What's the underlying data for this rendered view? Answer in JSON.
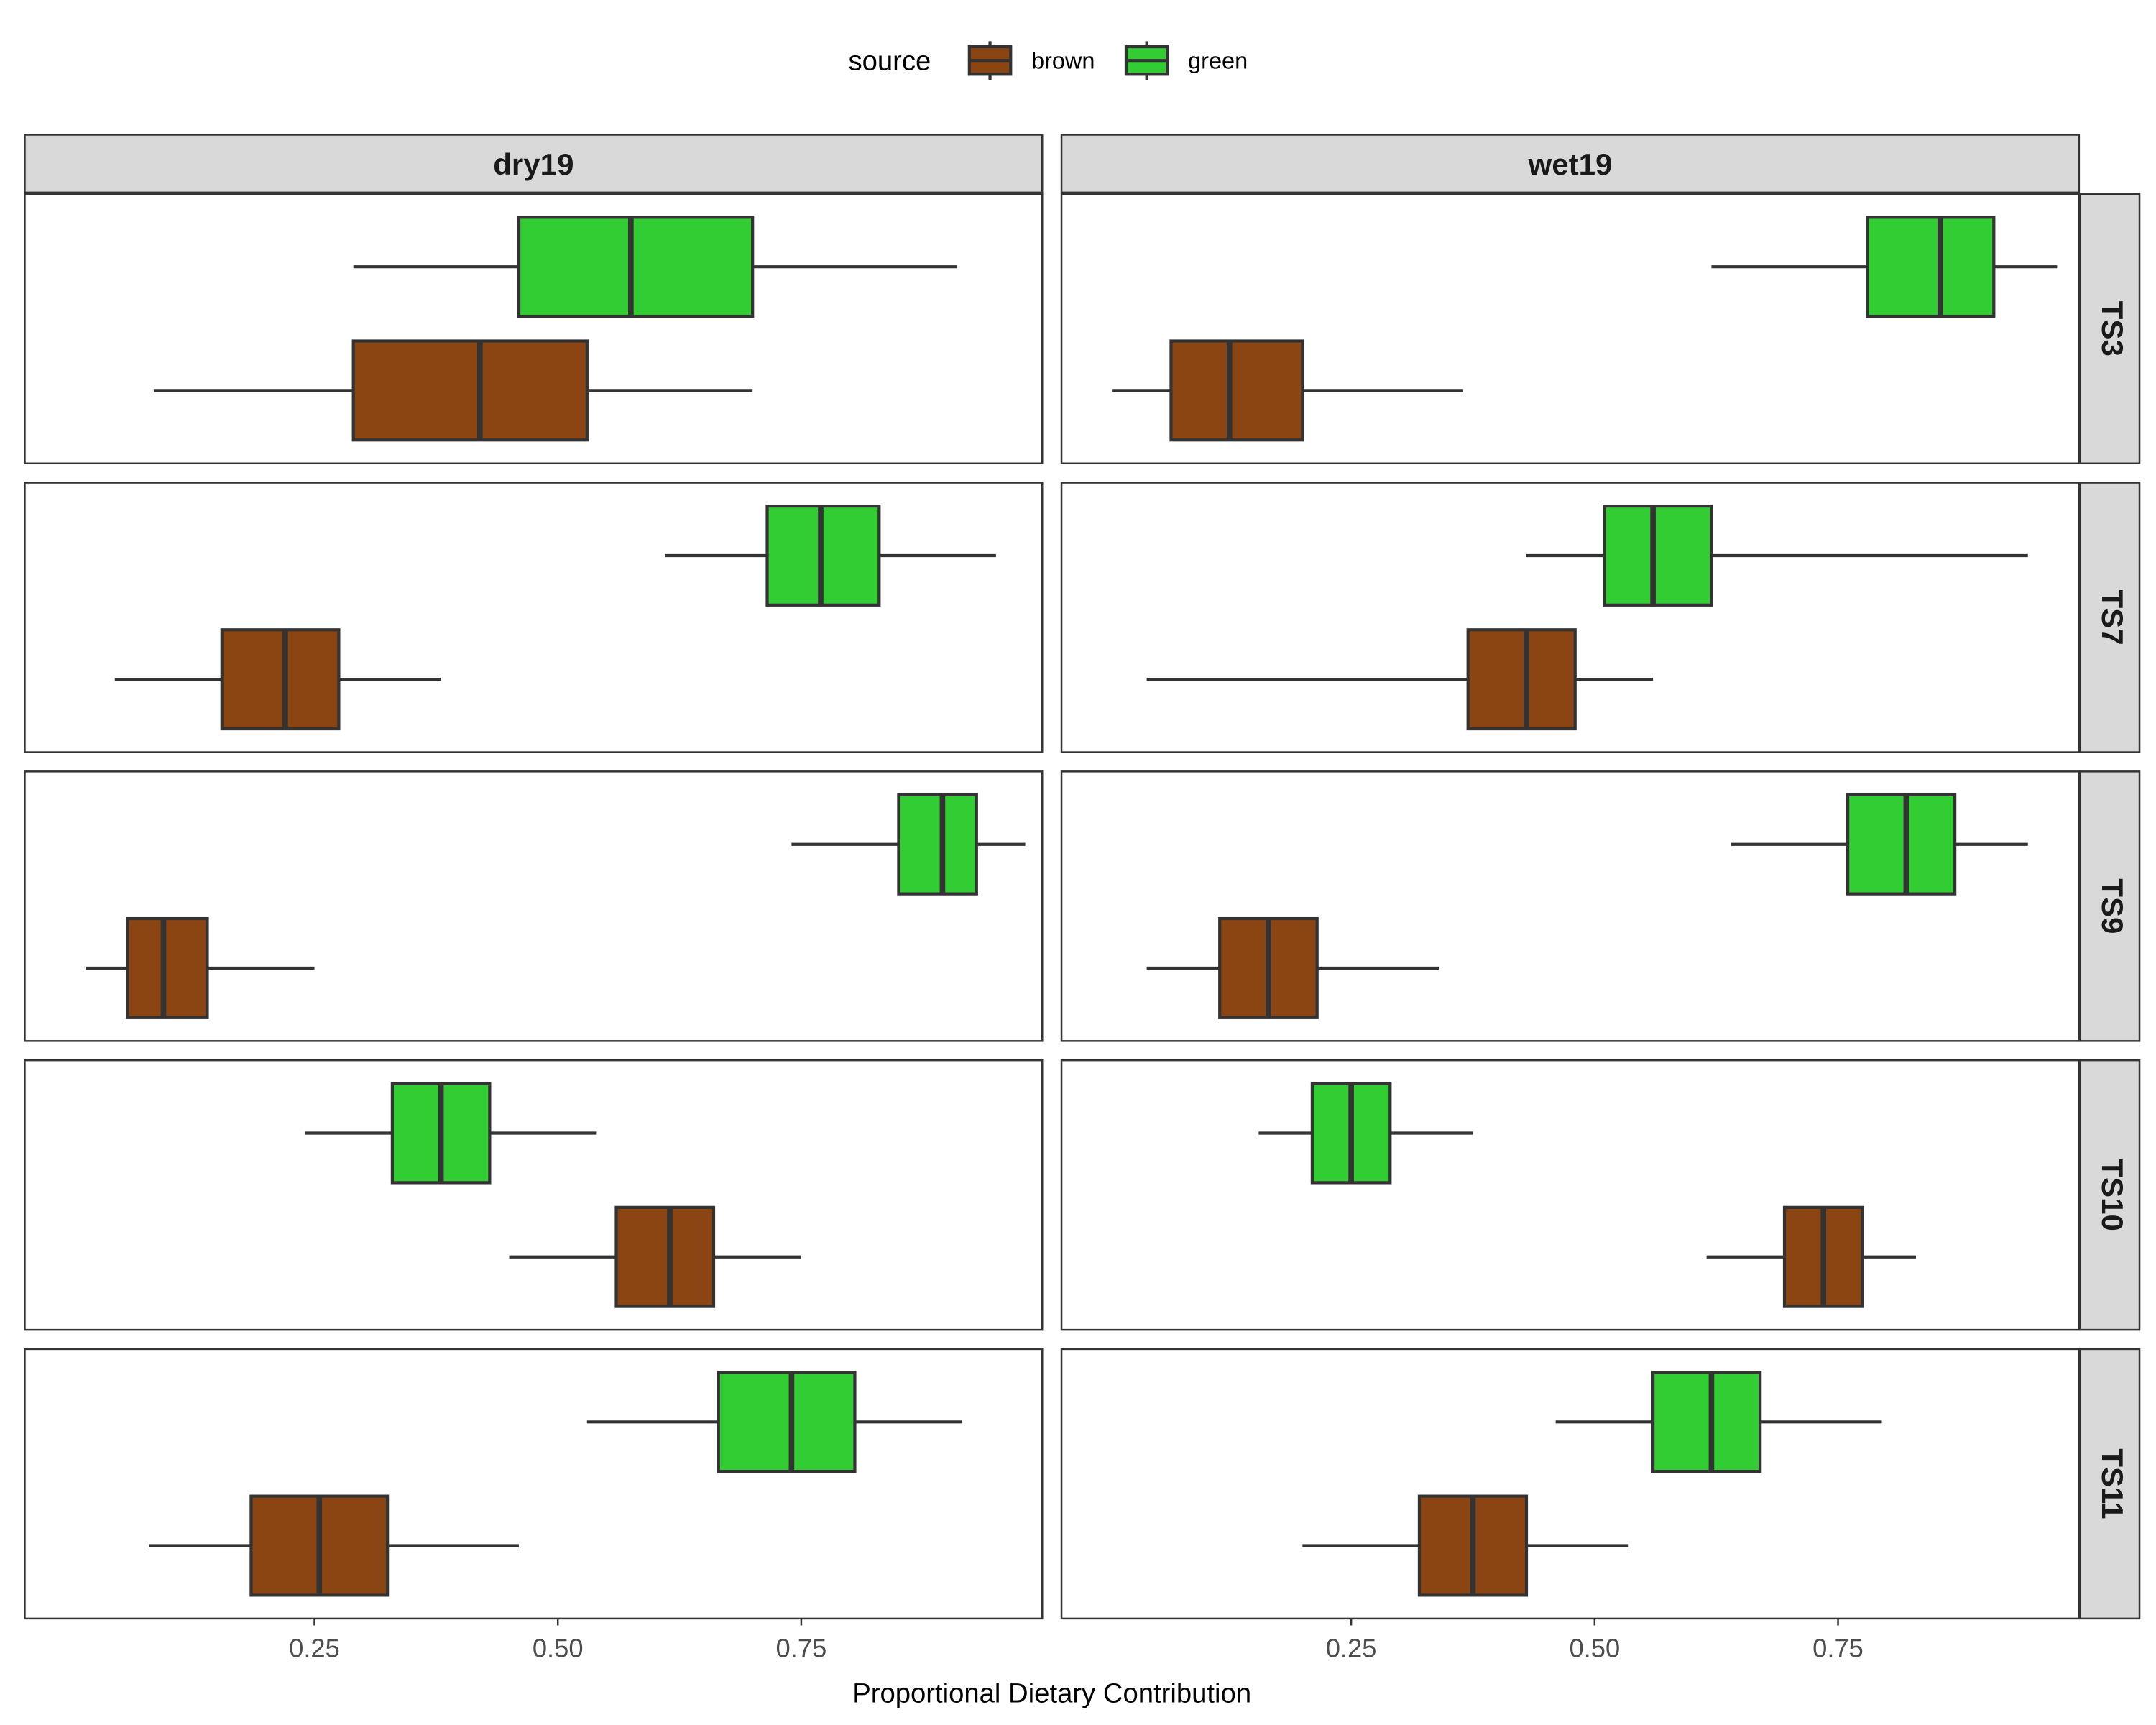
{
  "chart_data": {
    "type": "boxplot",
    "orientation": "horizontal",
    "xlabel": "Proportional Dietary Contribution",
    "ylabel": "",
    "xlim": [
      0.0,
      1.0
    ],
    "xticks": [
      0.25,
      0.5,
      0.75
    ],
    "xtick_labels": [
      "0.25",
      "0.50",
      "0.75"
    ],
    "grid": false,
    "legend": {
      "title": "source",
      "placement": "top",
      "entries": [
        {
          "label": "brown",
          "color": "#8B4513"
        },
        {
          "label": "green",
          "color": "#32CD32"
        }
      ]
    },
    "facet_columns": [
      "dry19",
      "wet19"
    ],
    "facet_rows": [
      "TS3",
      "TS7",
      "TS9",
      "TS10",
      "TS11"
    ],
    "box_stats_order": [
      "whisker_low",
      "q1",
      "median",
      "q3",
      "whisker_high"
    ],
    "panels": [
      {
        "col": "dry19",
        "row": "TS3",
        "green": [
          0.29,
          0.46,
          0.575,
          0.7,
          0.91
        ],
        "brown": [
          0.085,
          0.29,
          0.42,
          0.53,
          0.7
        ]
      },
      {
        "col": "wet19",
        "row": "TS3",
        "green": [
          0.62,
          0.78,
          0.855,
          0.91,
          0.975
        ],
        "brown": [
          0.005,
          0.065,
          0.125,
          0.2,
          0.365
        ]
      },
      {
        "col": "dry19",
        "row": "TS7",
        "green": [
          0.61,
          0.715,
          0.77,
          0.83,
          0.95
        ],
        "brown": [
          0.045,
          0.155,
          0.22,
          0.275,
          0.38
        ]
      },
      {
        "col": "wet19",
        "row": "TS7",
        "green": [
          0.43,
          0.51,
          0.56,
          0.62,
          0.945
        ],
        "brown": [
          0.04,
          0.37,
          0.43,
          0.48,
          0.56
        ]
      },
      {
        "col": "dry19",
        "row": "TS9",
        "green": [
          0.74,
          0.85,
          0.895,
          0.93,
          0.98
        ],
        "brown": [
          0.015,
          0.058,
          0.095,
          0.14,
          0.25
        ]
      },
      {
        "col": "wet19",
        "row": "TS9",
        "green": [
          0.64,
          0.76,
          0.82,
          0.87,
          0.945
        ],
        "brown": [
          0.04,
          0.115,
          0.165,
          0.215,
          0.34
        ]
      },
      {
        "col": "dry19",
        "row": "TS10",
        "green": [
          0.24,
          0.33,
          0.38,
          0.43,
          0.54
        ],
        "brown": [
          0.45,
          0.56,
          0.615,
          0.66,
          0.75
        ]
      },
      {
        "col": "wet19",
        "row": "TS10",
        "green": [
          0.155,
          0.21,
          0.25,
          0.29,
          0.375
        ],
        "brown": [
          0.615,
          0.695,
          0.735,
          0.775,
          0.83
        ]
      },
      {
        "col": "dry19",
        "row": "TS11",
        "green": [
          0.53,
          0.665,
          0.74,
          0.805,
          0.915
        ],
        "brown": [
          0.08,
          0.185,
          0.255,
          0.325,
          0.46
        ]
      },
      {
        "col": "wet19",
        "row": "TS11",
        "green": [
          0.46,
          0.56,
          0.62,
          0.67,
          0.795
        ],
        "brown": [
          0.2,
          0.32,
          0.375,
          0.43,
          0.535
        ]
      }
    ]
  }
}
